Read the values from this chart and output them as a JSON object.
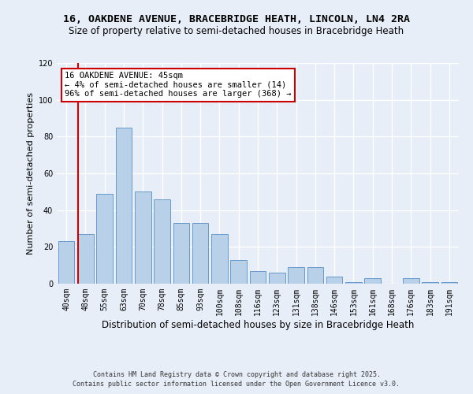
{
  "title": "16, OAKDENE AVENUE, BRACEBRIDGE HEATH, LINCOLN, LN4 2RA",
  "subtitle": "Size of property relative to semi-detached houses in Bracebridge Heath",
  "xlabel": "Distribution of semi-detached houses by size in Bracebridge Heath",
  "ylabel": "Number of semi-detached properties",
  "categories": [
    "40sqm",
    "48sqm",
    "55sqm",
    "63sqm",
    "70sqm",
    "78sqm",
    "85sqm",
    "93sqm",
    "100sqm",
    "108sqm",
    "116sqm",
    "123sqm",
    "131sqm",
    "138sqm",
    "146sqm",
    "153sqm",
    "161sqm",
    "168sqm",
    "176sqm",
    "183sqm",
    "191sqm"
  ],
  "values": [
    23,
    27,
    49,
    85,
    50,
    46,
    33,
    33,
    27,
    13,
    7,
    6,
    9,
    9,
    4,
    1,
    3,
    0,
    3,
    1,
    1
  ],
  "bar_color": "#b8d0e8",
  "bar_edge_color": "#6699cc",
  "ylim": [
    0,
    120
  ],
  "yticks": [
    0,
    20,
    40,
    60,
    80,
    100,
    120
  ],
  "annotation_text_line1": "16 OAKDENE AVENUE: 45sqm",
  "annotation_text_line2": "← 4% of semi-detached houses are smaller (14)",
  "annotation_text_line3": "96% of semi-detached houses are larger (368) →",
  "annotation_box_color": "#ffffff",
  "annotation_box_edge": "#cc0000",
  "red_line_color": "#cc0000",
  "footer_line1": "Contains HM Land Registry data © Crown copyright and database right 2025.",
  "footer_line2": "Contains public sector information licensed under the Open Government Licence v3.0.",
  "bg_color": "#e8eef8",
  "plot_bg_color": "#e8eef8",
  "grid_color": "#ffffff",
  "title_fontsize": 9.5,
  "subtitle_fontsize": 8.5,
  "xlabel_fontsize": 8.5,
  "ylabel_fontsize": 8,
  "tick_fontsize": 7,
  "footer_fontsize": 6,
  "annot_fontsize": 7.5
}
